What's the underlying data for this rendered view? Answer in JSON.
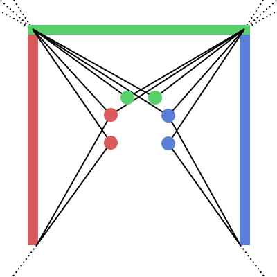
{
  "colors": {
    "background": "#ffffff",
    "red": "#d95a5a",
    "green": "#55d06b",
    "blue": "#5b7fd6",
    "line": "#000000"
  },
  "figure": {
    "bars": [
      {
        "id": "left-bar",
        "color": "red"
      },
      {
        "id": "right-bar",
        "color": "blue"
      },
      {
        "id": "top-bar",
        "color": "green"
      }
    ],
    "corners": [
      "top-left",
      "top-right",
      "bottom-left",
      "bottom-right"
    ],
    "dots": [
      {
        "id": "green-dot-1",
        "color": "green"
      },
      {
        "id": "green-dot-2",
        "color": "green"
      },
      {
        "id": "red-dot-1",
        "color": "red"
      },
      {
        "id": "red-dot-2",
        "color": "red"
      },
      {
        "id": "blue-dot-1",
        "color": "blue"
      },
      {
        "id": "blue-dot-2",
        "color": "blue"
      }
    ],
    "connections": [
      [
        "top-left",
        "green-dot-1"
      ],
      [
        "top-left",
        "green-dot-2"
      ],
      [
        "top-left",
        "red-dot-1"
      ],
      [
        "top-left",
        "red-dot-2"
      ],
      [
        "top-left",
        "blue-dot-1"
      ],
      [
        "top-right",
        "green-dot-1"
      ],
      [
        "top-right",
        "green-dot-2"
      ],
      [
        "top-right",
        "blue-dot-1"
      ],
      [
        "top-right",
        "blue-dot-2"
      ],
      [
        "top-right",
        "red-dot-1"
      ],
      [
        "bottom-left",
        "red-dot-1"
      ],
      [
        "bottom-left",
        "red-dot-2"
      ],
      [
        "bottom-right",
        "blue-dot-1"
      ],
      [
        "bottom-right",
        "blue-dot-2"
      ]
    ],
    "dotted_rays": [
      "top-left",
      "top-right",
      "bottom-left",
      "bottom-right"
    ]
  }
}
